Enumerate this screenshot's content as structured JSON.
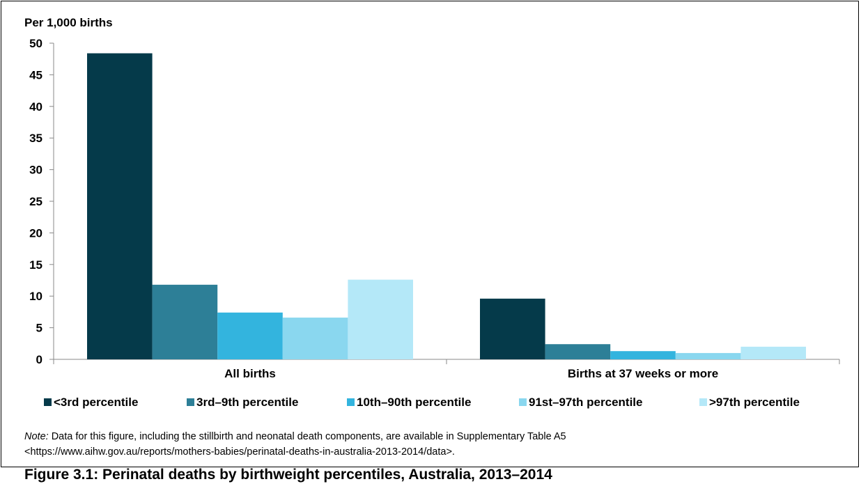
{
  "chart_data": {
    "type": "bar",
    "ylabel": "Per 1,000 births",
    "ylim": [
      0,
      50
    ],
    "yticks": [
      "0",
      "5",
      "10",
      "15",
      "20",
      "25",
      "30",
      "35",
      "40",
      "45",
      "50"
    ],
    "categories": [
      "All births",
      "Births at 37 weeks or more"
    ],
    "series": [
      {
        "name": "<3rd percentile",
        "color": "#053a4a",
        "values": [
          48.4,
          9.6
        ]
      },
      {
        "name": "3rd–9th percentile",
        "color": "#2d7f97",
        "values": [
          11.8,
          2.4
        ]
      },
      {
        "name": "10th–90th percentile",
        "color": "#33b4de",
        "values": [
          7.4,
          1.3
        ]
      },
      {
        "name": "91st–97th percentile",
        "color": "#8ad7ef",
        "values": [
          6.6,
          1.0
        ]
      },
      {
        "name": ">97th percentile",
        "color": "#b4e8f8",
        "values": [
          12.6,
          2.0
        ]
      }
    ],
    "legend_position": "bottom",
    "grid": false
  },
  "note": {
    "label": "Note:",
    "line1": " Data for this figure, including the stillbirth and neonatal death components, are available in Supplementary Table A5",
    "line2": "<https://www.aihw.gov.au/reports/mothers-babies/perinatal-deaths-in-australia-2013-2014/data>."
  },
  "caption": "Figure 3.1: Perinatal deaths by birthweight percentiles, Australia, 2013–2014"
}
